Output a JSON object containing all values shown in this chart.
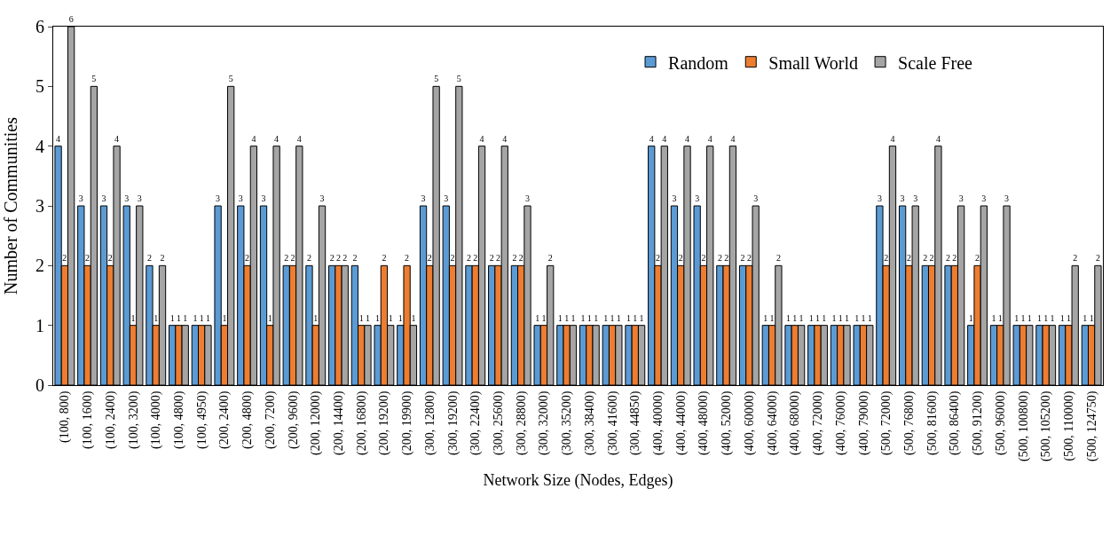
{
  "chart_data": {
    "type": "bar",
    "xlabel": "Network Size (Nodes, Edges)",
    "ylabel": "Number of Communities",
    "categories": [
      "(100, 800)",
      "(100, 1600)",
      "(100, 2400)",
      "(100, 3200)",
      "(100, 4000)",
      "(100, 4800)",
      "(100, 4950)",
      "(200, 2400)",
      "(200, 4800)",
      "(200, 7200)",
      "(200, 9600)",
      "(200, 12000)",
      "(200, 14400)",
      "(200, 16800)",
      "(200, 19200)",
      "(200, 19900)",
      "(300, 12800)",
      "(300, 19200)",
      "(300, 22400)",
      "(300, 25600)",
      "(300, 28800)",
      "(300, 32000)",
      "(300, 35200)",
      "(300, 38400)",
      "(300, 41600)",
      "(300, 44850)",
      "(400, 40000)",
      "(400, 44000)",
      "(400, 48000)",
      "(400, 52000)",
      "(400, 60000)",
      "(400, 64000)",
      "(400, 68000)",
      "(400, 72000)",
      "(400, 76000)",
      "(400, 79000)",
      "(500, 72000)",
      "(500, 76800)",
      "(500, 81600)",
      "(500, 86400)",
      "(500, 91200)",
      "(500, 96000)",
      "(500, 100800)",
      "(500, 105200)",
      "(500, 110000)",
      "(500, 124750)"
    ],
    "series": [
      {
        "name": "Random",
        "color": "#5b9bd5",
        "values": [
          4,
          3,
          3,
          3,
          2,
          1,
          1,
          3,
          3,
          3,
          2,
          2,
          2,
          2,
          1,
          1,
          3,
          3,
          2,
          2,
          2,
          1,
          1,
          1,
          1,
          1,
          4,
          3,
          3,
          2,
          2,
          1,
          1,
          1,
          1,
          1,
          3,
          3,
          2,
          2,
          1,
          1,
          1,
          1,
          1,
          1
        ]
      },
      {
        "name": "Small World",
        "color": "#ed7d31",
        "values": [
          2,
          2,
          2,
          1,
          1,
          1,
          1,
          1,
          2,
          1,
          2,
          1,
          2,
          1,
          2,
          2,
          2,
          2,
          2,
          2,
          2,
          1,
          1,
          1,
          1,
          1,
          2,
          2,
          2,
          2,
          2,
          1,
          1,
          1,
          1,
          1,
          2,
          2,
          2,
          2,
          2,
          1,
          1,
          1,
          1,
          1
        ]
      },
      {
        "name": "Scale Free",
        "color": "#a5a5a5",
        "values": [
          6,
          5,
          4,
          3,
          2,
          1,
          1,
          5,
          4,
          4,
          4,
          3,
          2,
          1,
          1,
          1,
          5,
          5,
          4,
          4,
          3,
          2,
          1,
          1,
          1,
          1,
          4,
          4,
          4,
          4,
          3,
          2,
          1,
          1,
          1,
          1,
          4,
          3,
          4,
          3,
          3,
          3,
          1,
          1,
          2,
          2
        ]
      }
    ],
    "ylim": [
      0,
      6
    ],
    "yticks": [
      0,
      1,
      2,
      3,
      4,
      5,
      6
    ],
    "data_labels": true,
    "legend": "top right"
  }
}
